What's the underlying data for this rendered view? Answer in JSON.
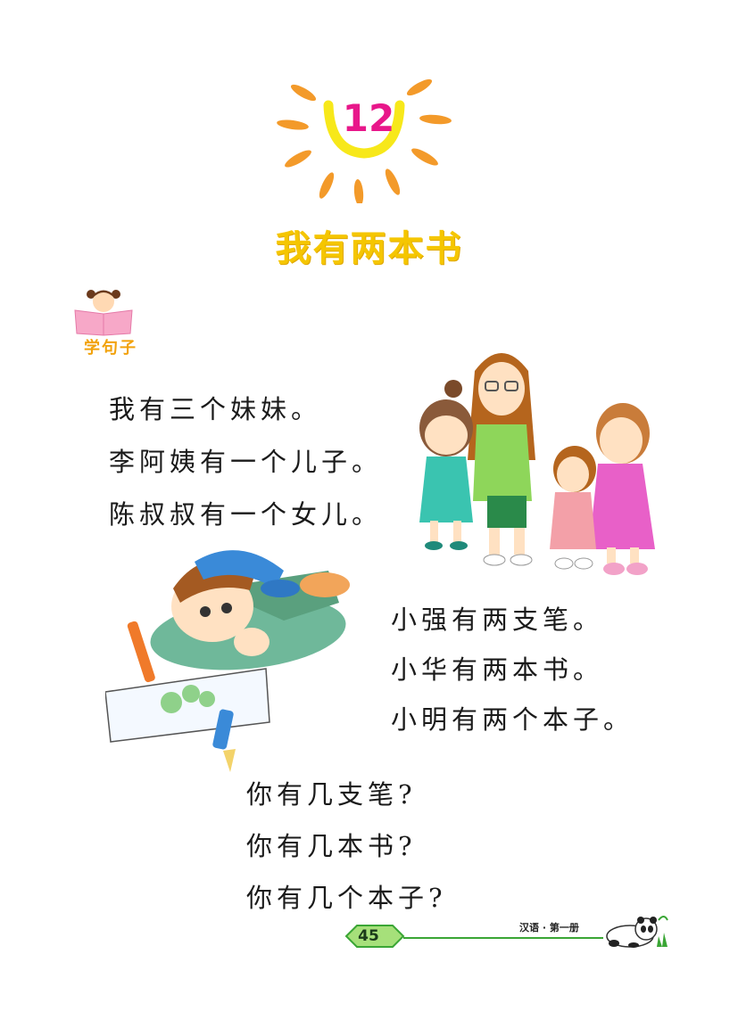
{
  "lesson": {
    "number": "12",
    "title": "我有两本书"
  },
  "section": {
    "label": "学句子"
  },
  "sentences_top": [
    "我有三个妹妹。",
    "李阿姨有一个儿子。",
    "陈叔叔有一个女儿。"
  ],
  "sentences_mid": [
    "小强有两支笔。",
    "小华有两本书。",
    "小明有两个本子。"
  ],
  "questions": [
    "你有几支笔?",
    "你有几本书?",
    "你有几个本子?"
  ],
  "footer": {
    "page_number": "45",
    "book_title": "汉语 · 第一册"
  },
  "colors": {
    "title": "#f5c600",
    "number": "#e8178a",
    "sun_rays": "#f39a2a",
    "footer_green": "#3aa635"
  },
  "icons": [
    "sun-icon",
    "girl-reading-icon",
    "panda-icon"
  ]
}
